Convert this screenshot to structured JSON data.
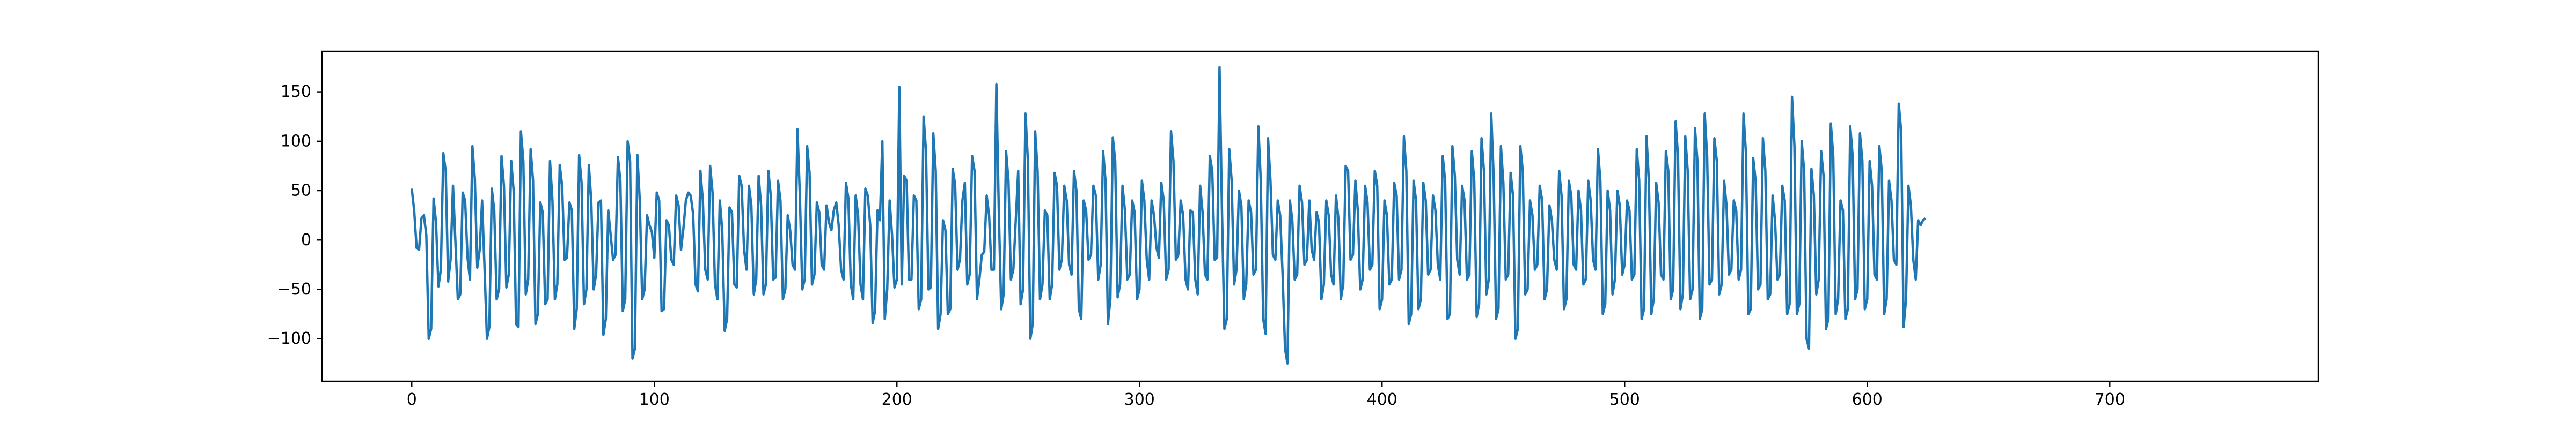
{
  "chart_data": {
    "type": "line",
    "title": "",
    "xlabel": "",
    "ylabel": "",
    "xlim": [
      -37,
      786
    ],
    "ylim": [
      -143,
      191
    ],
    "xticks": [
      0,
      100,
      200,
      300,
      400,
      500,
      600,
      700
    ],
    "yticks": [
      -100,
      -50,
      0,
      50,
      100,
      150
    ],
    "xtick_labels": [
      "0",
      "100",
      "200",
      "300",
      "400",
      "500",
      "600",
      "700"
    ],
    "ytick_labels": [
      "−100",
      "−50",
      "0",
      "50",
      "100",
      "150"
    ],
    "grid": false,
    "legend": "none",
    "series": [
      {
        "color": "#1f77b4",
        "x_start": 0,
        "x_step": 1,
        "values": [
          52,
          30,
          -8,
          -10,
          22,
          25,
          5,
          -100,
          -90,
          42,
          18,
          -47,
          -30,
          88,
          70,
          -42,
          -20,
          55,
          -2,
          -60,
          -55,
          48,
          40,
          -18,
          -40,
          95,
          62,
          -28,
          -10,
          40,
          -28,
          -100,
          -88,
          52,
          30,
          -60,
          -50,
          85,
          55,
          -48,
          -35,
          80,
          50,
          -85,
          -88,
          110,
          80,
          -55,
          -40,
          92,
          60,
          -85,
          -75,
          38,
          28,
          -65,
          -60,
          80,
          40,
          -60,
          -45,
          76,
          55,
          -20,
          -18,
          38,
          30,
          -90,
          -70,
          86,
          58,
          -65,
          -50,
          76,
          40,
          -50,
          -35,
          38,
          40,
          -96,
          -80,
          30,
          5,
          -20,
          -15,
          84,
          60,
          -72,
          -60,
          100,
          80,
          -120,
          -110,
          86,
          40,
          -60,
          -50,
          25,
          15,
          8,
          -18,
          48,
          40,
          -72,
          -70,
          20,
          15,
          -20,
          -25,
          45,
          35,
          -10,
          12,
          40,
          48,
          45,
          26,
          -45,
          -52,
          70,
          40,
          -30,
          -40,
          75,
          48,
          -45,
          -60,
          40,
          10,
          -92,
          -80,
          33,
          28,
          -45,
          -48,
          65,
          55,
          -10,
          -30,
          55,
          35,
          -55,
          -40,
          65,
          35,
          -55,
          -45,
          70,
          45,
          -40,
          -38,
          60,
          40,
          -60,
          -50,
          25,
          10,
          -25,
          -30,
          112,
          45,
          -50,
          -40,
          95,
          68,
          -45,
          -35,
          38,
          28,
          -25,
          -30,
          35,
          18,
          10,
          30,
          38,
          15,
          -30,
          -40,
          58,
          42,
          -45,
          -60,
          45,
          25,
          -45,
          -60,
          52,
          45,
          15,
          -84,
          -72,
          30,
          20,
          100,
          -80,
          -50,
          40,
          5,
          -48,
          -40,
          155,
          -45,
          65,
          60,
          -40,
          -40,
          45,
          40,
          -70,
          -60,
          125,
          90,
          -50,
          -48,
          108,
          70,
          -90,
          -75,
          20,
          10,
          -75,
          -70,
          72,
          56,
          -30,
          -20,
          40,
          58,
          -45,
          -35,
          85,
          70,
          -60,
          -40,
          -15,
          -12,
          45,
          25,
          -30,
          -30,
          158,
          30,
          -70,
          -55,
          90,
          60,
          -40,
          -30,
          20,
          70,
          -65,
          -50,
          128,
          80,
          -100,
          -85,
          110,
          70,
          -60,
          -45,
          30,
          25,
          -60,
          -45,
          68,
          55,
          -30,
          -20,
          55,
          40,
          -25,
          -35,
          70,
          50,
          -70,
          -80,
          40,
          30,
          -20,
          -15,
          55,
          45,
          -40,
          -25,
          90,
          60,
          -85,
          -60,
          104,
          80,
          -58,
          -45,
          55,
          30,
          -40,
          -35,
          40,
          28,
          -60,
          -50,
          60,
          40,
          -20,
          -40,
          40,
          25,
          -8,
          -18,
          58,
          40,
          -40,
          -30,
          110,
          80,
          -20,
          -15,
          40,
          25,
          -40,
          -50,
          30,
          28,
          -40,
          -55,
          55,
          28,
          -35,
          -40,
          85,
          70,
          -20,
          -18,
          175,
          30,
          -90,
          -80,
          92,
          60,
          -45,
          -30,
          50,
          35,
          -60,
          -45,
          40,
          28,
          -35,
          -30,
          115,
          60,
          -80,
          -95,
          103,
          60,
          -15,
          -20,
          40,
          25,
          -35,
          -110,
          -125,
          40,
          20,
          -40,
          -35,
          55,
          38,
          -25,
          -20,
          40,
          -10,
          -20,
          28,
          18,
          -60,
          -45,
          40,
          25,
          -35,
          -45,
          45,
          22,
          -60,
          -45,
          75,
          70,
          -20,
          -15,
          60,
          30,
          -50,
          -40,
          55,
          38,
          -30,
          -25,
          70,
          55,
          -70,
          -60,
          40,
          25,
          -45,
          -40,
          58,
          45,
          -40,
          -30,
          105,
          70,
          -85,
          -75,
          60,
          40,
          -70,
          -60,
          58,
          40,
          -35,
          -30,
          45,
          30,
          -25,
          -40,
          85,
          60,
          -80,
          -75,
          95,
          65,
          -20,
          -35,
          55,
          40,
          -40,
          -35,
          90,
          60,
          -78,
          -65,
          103,
          70,
          -55,
          -40,
          128,
          65,
          -80,
          -70,
          95,
          58,
          -40,
          -35,
          68,
          45,
          -100,
          -90,
          95,
          70,
          -55,
          -50,
          40,
          25,
          -30,
          -25,
          55,
          40,
          -60,
          -50,
          35,
          20,
          -20,
          -30,
          70,
          45,
          -70,
          -60,
          60,
          45,
          -25,
          -30,
          50,
          30,
          -45,
          -40,
          60,
          40,
          -20,
          -30,
          92,
          60,
          -75,
          -65,
          50,
          30,
          -55,
          -40,
          50,
          35,
          -35,
          -25,
          40,
          30,
          -40,
          -35,
          92,
          60,
          -80,
          -70,
          105,
          60,
          -75,
          -60,
          58,
          38,
          -35,
          -40,
          90,
          70,
          -60,
          -50,
          120,
          85,
          -70,
          -55,
          105,
          70,
          -60,
          -50,
          113,
          80,
          -80,
          -70,
          128,
          85,
          -45,
          -40,
          103,
          80,
          -55,
          -45,
          60,
          35,
          -35,
          -30,
          40,
          30,
          -40,
          -30,
          128,
          88,
          -75,
          -70,
          83,
          60,
          -50,
          -45,
          103,
          70,
          -60,
          -55,
          45,
          20,
          -40,
          -35,
          55,
          40,
          -75,
          -65,
          145,
          95,
          -75,
          -65,
          100,
          70,
          -100,
          -110,
          72,
          45,
          -55,
          -40,
          90,
          65,
          -90,
          -80,
          118,
          85,
          -75,
          -60,
          40,
          30,
          -80,
          -70,
          115,
          85,
          -60,
          -50,
          108,
          80,
          -70,
          -60,
          80,
          55,
          -35,
          -40,
          95,
          70,
          -75,
          -60,
          60,
          40,
          -20,
          -25,
          138,
          110,
          -88,
          -60,
          55,
          35,
          -20,
          -40,
          20,
          15,
          20,
          22
        ]
      }
    ]
  }
}
